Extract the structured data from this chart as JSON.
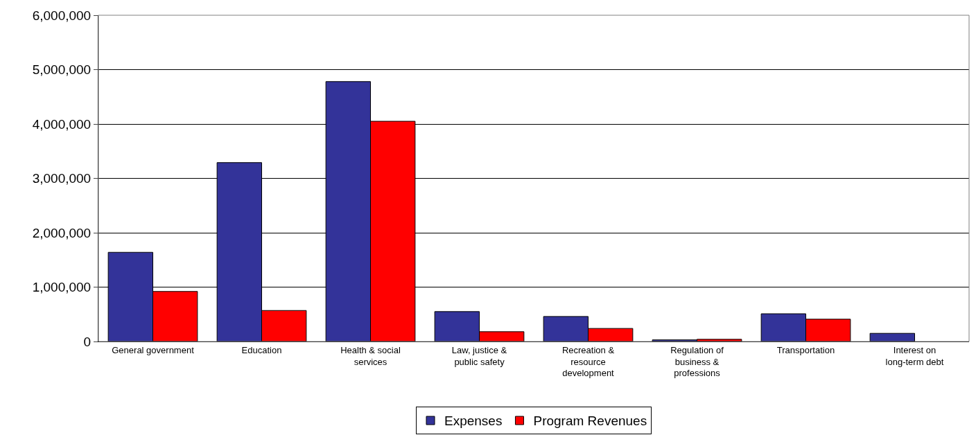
{
  "chart_data": {
    "type": "bar",
    "categories": [
      "General government",
      "Education",
      "Health & social services",
      "Law, justice & public safety",
      "Recreation & resource development",
      "Regulation of business & professions",
      "Transportation",
      "Interest on long-term debt"
    ],
    "series": [
      {
        "name": "Expenses",
        "color": "#333399",
        "values": [
          1640000,
          3290000,
          4780000,
          550000,
          460000,
          30000,
          510000,
          150000
        ]
      },
      {
        "name": "Program Revenues",
        "color": "#ff0000",
        "values": [
          920000,
          570000,
          4050000,
          180000,
          240000,
          40000,
          410000,
          null
        ]
      }
    ],
    "ylim": [
      0,
      6000000
    ],
    "yticks": [
      {
        "value": 0,
        "label": "0"
      },
      {
        "value": 1000000,
        "label": "1,000,000"
      },
      {
        "value": 2000000,
        "label": "2,000,000"
      },
      {
        "value": 3000000,
        "label": "3,000,000"
      },
      {
        "value": 4000000,
        "label": "4,000,000"
      },
      {
        "value": 5000000,
        "label": "5,000,000"
      },
      {
        "value": 6000000,
        "label": "6,000,000"
      }
    ],
    "grid": "y",
    "legend": "bottom"
  }
}
